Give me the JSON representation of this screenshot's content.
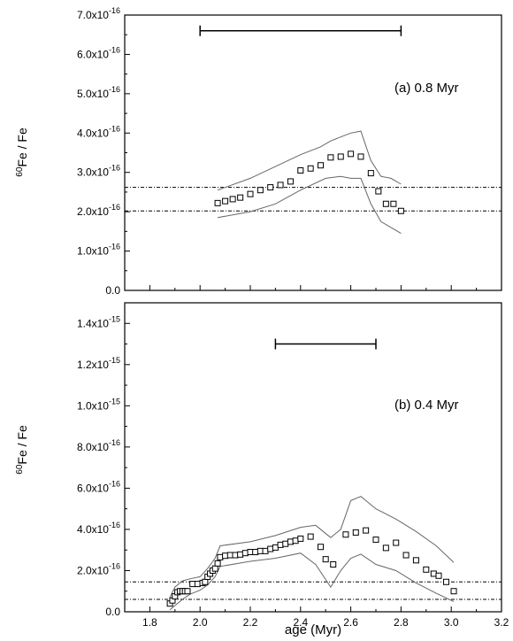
{
  "chart_data": [
    {
      "type": "scatter",
      "panel_label": "(a) 0.8 Myr",
      "ylabel_sup": "60",
      "ylabel_main": "Fe / Fe",
      "xlim": [
        1.7,
        3.2
      ],
      "ylim": [
        0,
        7e-16
      ],
      "yticks": [
        {
          "value": 0,
          "mant": "0.0",
          "exp": ""
        },
        {
          "value": 1e-16,
          "mant": "1.0x10",
          "exp": "-16"
        },
        {
          "value": 2e-16,
          "mant": "2.0x10",
          "exp": "-16"
        },
        {
          "value": 3e-16,
          "mant": "3.0x10",
          "exp": "-16"
        },
        {
          "value": 4e-16,
          "mant": "4.0x10",
          "exp": "-16"
        },
        {
          "value": 5e-16,
          "mant": "5.0x10",
          "exp": "-16"
        },
        {
          "value": 6e-16,
          "mant": "6.0x10",
          "exp": "-16"
        },
        {
          "value": 7e-16,
          "mant": "7.0x10",
          "exp": "-16"
        }
      ],
      "hlines": [
        2.62e-16,
        2.02e-16
      ],
      "interval_bar": {
        "x_start": 2.0,
        "x_end": 2.8,
        "y": 6.6e-16
      },
      "points": {
        "x": [
          2.07,
          2.1,
          2.13,
          2.16,
          2.2,
          2.24,
          2.28,
          2.32,
          2.36,
          2.4,
          2.44,
          2.48,
          2.52,
          2.56,
          2.6,
          2.64,
          2.68,
          2.71,
          2.74,
          2.77,
          2.8
        ],
        "y": [
          2.22e-16,
          2.27e-16,
          2.32e-16,
          2.36e-16,
          2.45e-16,
          2.55e-16,
          2.62e-16,
          2.68e-16,
          2.77e-16,
          3.05e-16,
          3.1e-16,
          3.18e-16,
          3.38e-16,
          3.4e-16,
          3.47e-16,
          3.4e-16,
          2.98e-16,
          2.52e-16,
          2.2e-16,
          2.2e-16,
          2.02e-16
        ]
      },
      "upper_band": {
        "x": [
          2.07,
          2.2,
          2.3,
          2.4,
          2.48,
          2.52,
          2.56,
          2.6,
          2.64,
          2.68,
          2.72,
          2.76,
          2.8
        ],
        "y": [
          2.55e-16,
          2.85e-16,
          3.15e-16,
          3.45e-16,
          3.65e-16,
          3.8e-16,
          3.9e-16,
          4e-16,
          4.05e-16,
          3.3e-16,
          2.9e-16,
          2.85e-16,
          2.7e-16
        ]
      },
      "lower_band": {
        "x": [
          2.07,
          2.2,
          2.3,
          2.4,
          2.5,
          2.56,
          2.6,
          2.64,
          2.68,
          2.72,
          2.76,
          2.8
        ],
        "y": [
          1.85e-16,
          2e-16,
          2.2e-16,
          2.55e-16,
          2.85e-16,
          2.9e-16,
          2.85e-16,
          2.85e-16,
          2.2e-16,
          1.75e-16,
          1.6e-16,
          1.45e-16
        ]
      }
    },
    {
      "type": "scatter",
      "panel_label": "(b) 0.4 Myr",
      "ylabel_sup": "60",
      "ylabel_main": "Fe / Fe",
      "xlabel": "age (Myr)",
      "xlim": [
        1.7,
        3.2
      ],
      "ylim": [
        0,
        1.5e-15
      ],
      "xticks": [
        {
          "value": 1.8,
          "label": "1.8"
        },
        {
          "value": 2.0,
          "label": "2.0"
        },
        {
          "value": 2.2,
          "label": "2.2"
        },
        {
          "value": 2.4,
          "label": "2.4"
        },
        {
          "value": 2.6,
          "label": "2.6"
        },
        {
          "value": 2.8,
          "label": "2.8"
        },
        {
          "value": 3.0,
          "label": "3.0"
        },
        {
          "value": 3.2,
          "label": "3.2"
        }
      ],
      "yticks": [
        {
          "value": 0,
          "mant": "0.0",
          "exp": ""
        },
        {
          "value": 2e-16,
          "mant": "2.0x10",
          "exp": "-16"
        },
        {
          "value": 4e-16,
          "mant": "4.0x10",
          "exp": "-16"
        },
        {
          "value": 6e-16,
          "mant": "6.0x10",
          "exp": "-16"
        },
        {
          "value": 8e-16,
          "mant": "8.0x10",
          "exp": "-16"
        },
        {
          "value": 1e-15,
          "mant": "1.0x10",
          "exp": "-15"
        },
        {
          "value": 1.2e-15,
          "mant": "1.2x10",
          "exp": "-15"
        },
        {
          "value": 1.4e-15,
          "mant": "1.4x10",
          "exp": "-15"
        }
      ],
      "hlines": [
        1.45e-16,
        6e-17
      ],
      "interval_bar": {
        "x_start": 2.3,
        "x_end": 2.7,
        "y": 1.3e-15
      },
      "points": {
        "x": [
          1.88,
          1.89,
          1.9,
          1.91,
          1.92,
          1.93,
          1.94,
          1.95,
          1.97,
          1.99,
          2.01,
          2.02,
          2.03,
          2.04,
          2.05,
          2.06,
          2.07,
          2.08,
          2.1,
          2.12,
          2.14,
          2.16,
          2.18,
          2.2,
          2.22,
          2.24,
          2.26,
          2.28,
          2.3,
          2.32,
          2.34,
          2.36,
          2.38,
          2.4,
          2.44,
          2.48,
          2.5,
          2.53,
          2.58,
          2.62,
          2.66,
          2.7,
          2.74,
          2.78,
          2.82,
          2.86,
          2.9,
          2.93,
          2.95,
          2.98,
          3.01
        ],
        "y": [
          4e-17,
          5.5e-17,
          7.5e-17,
          9.5e-17,
          1e-16,
          1e-16,
          1e-16,
          1e-16,
          1.35e-16,
          1.35e-16,
          1.4e-16,
          1.45e-16,
          1.7e-16,
          1.85e-16,
          2e-16,
          2.1e-16,
          2.35e-16,
          2.65e-16,
          2.72e-16,
          2.75e-16,
          2.75e-16,
          2.78e-16,
          2.85e-16,
          2.9e-16,
          2.9e-16,
          2.95e-16,
          2.95e-16,
          3.05e-16,
          3.12e-16,
          3.25e-16,
          3.3e-16,
          3.4e-16,
          3.45e-16,
          3.55e-16,
          3.65e-16,
          3.15e-16,
          2.55e-16,
          2.3e-16,
          3.75e-16,
          3.85e-16,
          3.95e-16,
          3.5e-16,
          3.1e-16,
          3.35e-16,
          2.75e-16,
          2.5e-16,
          2.05e-16,
          1.85e-16,
          1.75e-16,
          1.45e-16,
          1e-16
        ]
      },
      "upper_band": {
        "x": [
          1.88,
          1.9,
          1.93,
          1.96,
          2.0,
          2.03,
          2.06,
          2.08,
          2.2,
          2.3,
          2.4,
          2.46,
          2.52,
          2.56,
          2.6,
          2.64,
          2.7,
          2.78,
          2.86,
          2.94,
          3.01
        ],
        "y": [
          7e-17,
          1.2e-16,
          1.5e-16,
          1.6e-16,
          1.7e-16,
          2.1e-16,
          2.6e-16,
          3.2e-16,
          3.4e-16,
          3.7e-16,
          4.1e-16,
          4.2e-16,
          3.6e-16,
          4e-16,
          5.4e-16,
          5.6e-16,
          5e-16,
          4.5e-16,
          3.9e-16,
          3.2e-16,
          2.4e-16
        ]
      },
      "lower_band": {
        "x": [
          1.88,
          1.9,
          1.93,
          1.96,
          2.0,
          2.03,
          2.06,
          2.08,
          2.2,
          2.3,
          2.4,
          2.46,
          2.52,
          2.56,
          2.6,
          2.64,
          2.7,
          2.78,
          2.86,
          2.94,
          3.01
        ],
        "y": [
          1e-17,
          3e-17,
          6e-17,
          8.5e-17,
          1.05e-16,
          1.3e-16,
          1.7e-16,
          2.2e-16,
          2.45e-16,
          2.6e-16,
          2.85e-16,
          2.3e-16,
          1.2e-16,
          2e-16,
          2.6e-16,
          2.8e-16,
          2.3e-16,
          2e-16,
          1.4e-16,
          9e-17,
          5e-17
        ]
      }
    }
  ]
}
